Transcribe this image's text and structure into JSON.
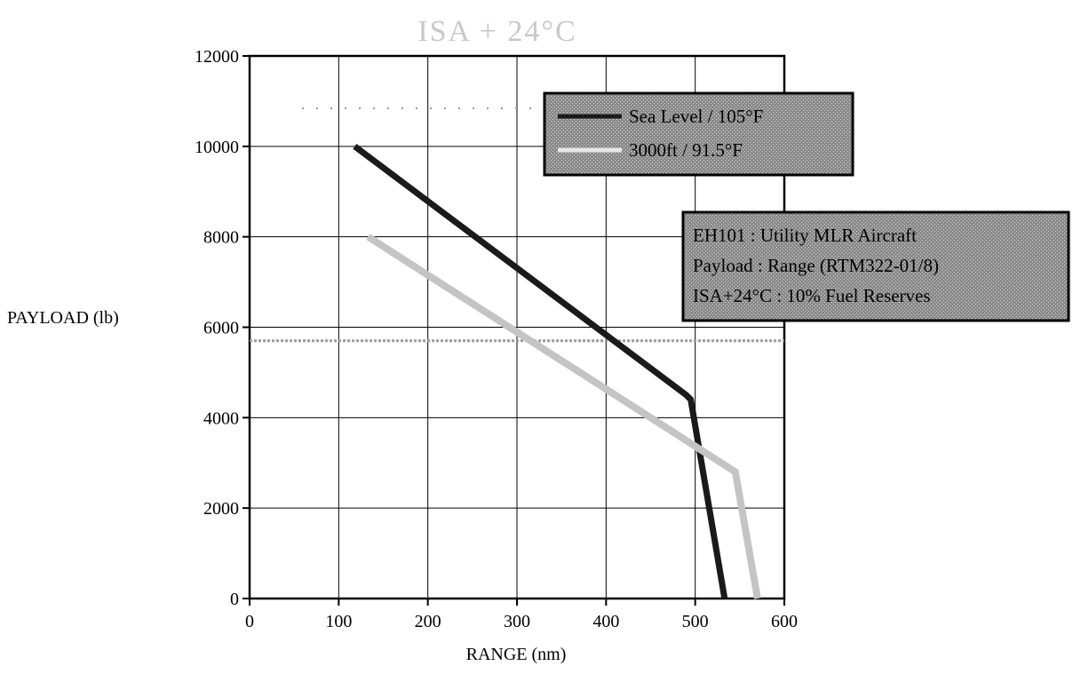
{
  "chart_data": {
    "type": "line",
    "title": "ISA + 24°C",
    "xlabel": "RANGE (nm)",
    "ylabel": "PAYLOAD (lb)",
    "xlim": [
      0,
      600
    ],
    "ylim": [
      0,
      12000
    ],
    "xticks": [
      0,
      100,
      200,
      300,
      400,
      500,
      600
    ],
    "yticks": [
      0,
      2000,
      4000,
      6000,
      8000,
      10000,
      12000
    ],
    "grid": true,
    "legend_position": "top-right",
    "series": [
      {
        "name": "Sea Level / 105°F",
        "color": "#1a1a1a",
        "points": [
          [
            118,
            10000
          ],
          [
            490,
            4500
          ],
          [
            495,
            4400
          ],
          [
            533,
            0
          ]
        ]
      },
      {
        "name": "3000ft / 91.5°F",
        "color": "#c4c4c4",
        "points": [
          [
            133,
            8000
          ],
          [
            545,
            2800
          ],
          [
            570,
            0
          ]
        ]
      }
    ],
    "reference_lines": [
      {
        "axis": "y",
        "value": 5700,
        "color": "#9a9a9a"
      }
    ],
    "annotation": {
      "lines": [
        "EH101 : Utility MLR Aircraft",
        "Payload : Range (RTM322-01/8)",
        "ISA+24°C : 10% Fuel Reserves"
      ]
    }
  }
}
